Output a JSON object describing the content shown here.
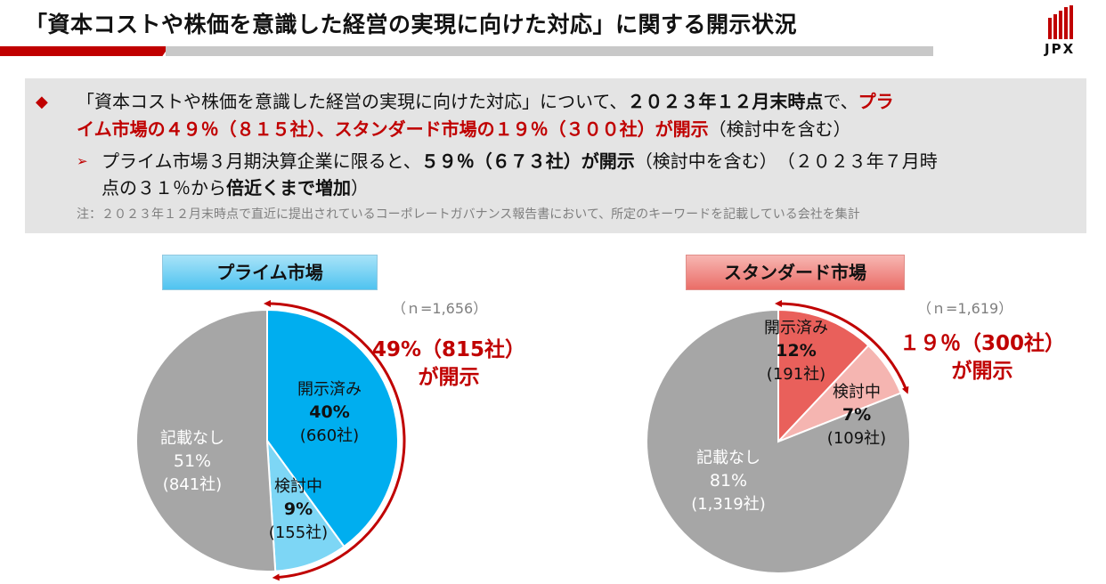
{
  "page": {
    "title": "「資本コストや株価を意識した経営の実現に向けた対応」に関する開示状況",
    "logo_text": "JPX"
  },
  "summary": {
    "line1_a": "「資本コストや株価を意識した経営の実現に向けた対応」について、",
    "line1_b": "２０２３年１２月末時点",
    "line1_c": "で、",
    "line1_d": "プラ",
    "line2_a": "イム市場の４９％（８１５社）、スタンダード市場の１９％（３００社）が開示",
    "line2_b": "（検討中を含む）",
    "sub1_a": "プライム市場３月期決算企業に限ると、",
    "sub1_b": "５９％（６７３社）が開示",
    "sub1_c": "（検討中を含む）　（２０２３年７月時",
    "sub2_a": "点の３１％から",
    "sub2_b": "倍近くまで増加",
    "sub2_c": "）",
    "note": "注：２０２３年１２月末時点で直近に提出されているコーポレートガバナンス報告書において、所定のキーワードを記載している会社を集計"
  },
  "colors": {
    "accent_red": "#c00000",
    "prime_disclosed": "#00aeef",
    "prime_considering": "#7dd6f5",
    "std_disclosed": "#e9605b",
    "std_considering": "#f5b5b1",
    "none": "#a6a6a6"
  },
  "chart_data": [
    {
      "type": "pie",
      "title": "プライム市場",
      "n_label": "（ｎ=1,656）",
      "callout_line1": "49%（815社）",
      "callout_line2": "が開示",
      "slices": [
        {
          "name": "開示済み",
          "percent": 40,
          "percent_label": "40%",
          "count_label": "(660社)"
        },
        {
          "name": "検討中",
          "percent": 9,
          "percent_label": "9%",
          "count_label": "(155社)"
        },
        {
          "name": "記載なし",
          "percent": 51,
          "percent_label": "51%",
          "count_label": "(841社)"
        }
      ]
    },
    {
      "type": "pie",
      "title": "スタンダード市場",
      "n_label": "（ｎ=1,619）",
      "callout_line1": "１９％（300社）",
      "callout_line2": "が開示",
      "slices": [
        {
          "name": "開示済み",
          "percent": 12,
          "percent_label": "12%",
          "count_label": "(191社)"
        },
        {
          "name": "検討中",
          "percent": 7,
          "percent_label": "7%",
          "count_label": "(109社)"
        },
        {
          "name": "記載なし",
          "percent": 81,
          "percent_label": "81%",
          "count_label": "(1,319社)"
        }
      ]
    }
  ]
}
